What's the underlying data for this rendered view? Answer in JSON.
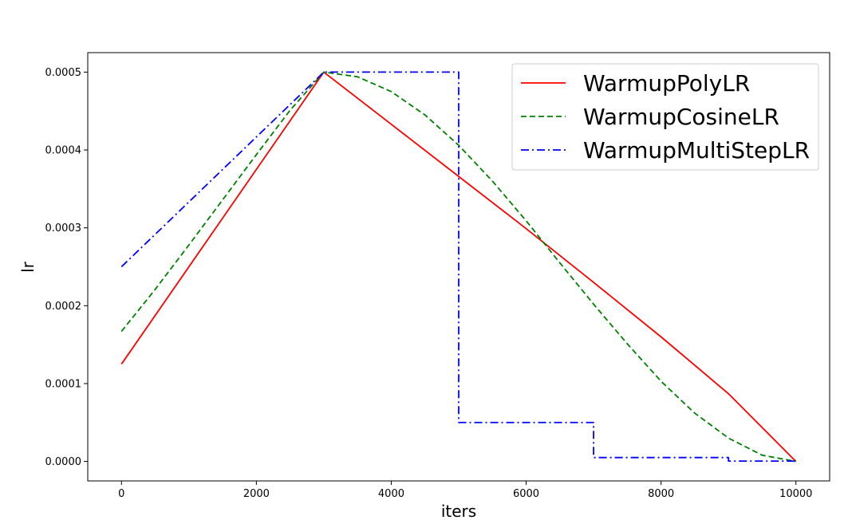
{
  "chart_data": {
    "type": "line",
    "title": "",
    "xlabel": "iters",
    "ylabel": "lr",
    "xlim": [
      -500,
      10500
    ],
    "ylim": [
      -2.5e-05,
      0.000525
    ],
    "xticks": [
      0,
      2000,
      4000,
      6000,
      8000,
      10000
    ],
    "xtick_labels": [
      "0",
      "2000",
      "4000",
      "6000",
      "8000",
      "10000"
    ],
    "yticks": [
      0.0,
      0.0001,
      0.0002,
      0.0003,
      0.0004,
      0.0005
    ],
    "ytick_labels": [
      "0.0000",
      "0.0001",
      "0.0002",
      "0.0003",
      "0.0004",
      "0.0005"
    ],
    "grid": false,
    "legend_position": "top-right",
    "series": [
      {
        "name": "WarmupPolyLR",
        "color": "#ff0000",
        "style": "solid",
        "x": [
          0,
          3000,
          4000,
          5000,
          6000,
          7000,
          8000,
          9000,
          10000
        ],
        "y": [
          0.000125,
          0.0005,
          0.000433,
          0.000366,
          0.000299,
          0.00023,
          0.00016,
          8.7e-05,
          0.0
        ]
      },
      {
        "name": "WarmupCosineLR",
        "color": "#008000",
        "style": "dashed",
        "x": [
          0,
          500,
          1000,
          1500,
          2000,
          2500,
          3000,
          3500,
          4000,
          4500,
          5000,
          5500,
          6000,
          6500,
          7000,
          7500,
          8000,
          8500,
          9000,
          9500,
          10000
        ],
        "y": [
          0.000167,
          0.000221,
          0.000278,
          0.000336,
          0.000394,
          0.000451,
          0.0005,
          0.000494,
          0.000475,
          0.000445,
          0.000406,
          0.00036,
          0.000309,
          0.000255,
          0.000202,
          0.000151,
          0.000103,
          6.2e-05,
          3e-05,
          8e-06,
          0.0
        ]
      },
      {
        "name": "WarmupMultiStepLR",
        "color": "#0000ff",
        "style": "dashdot",
        "x": [
          0,
          3000,
          5000,
          5000,
          7000,
          7000,
          9000,
          9000,
          10000
        ],
        "y": [
          0.00025,
          0.0005,
          0.0005,
          5e-05,
          5e-05,
          5e-06,
          5e-06,
          5e-07,
          5e-07
        ]
      }
    ]
  }
}
